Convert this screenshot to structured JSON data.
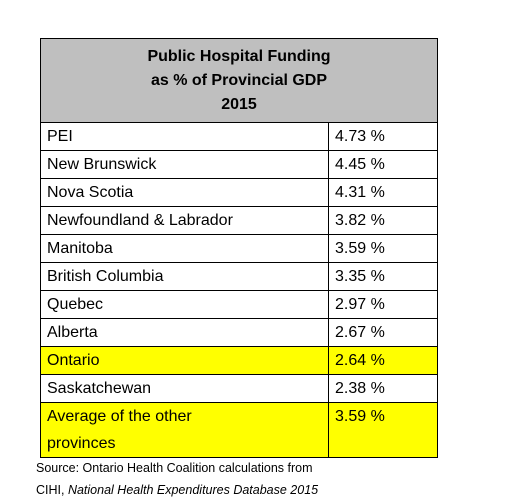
{
  "table": {
    "title": [
      "Public Hospital Funding",
      "as % of Provincial GDP",
      "2015"
    ],
    "header_color": "#bfbfbf",
    "highlight_color": "#ffff00",
    "highlighted_rows": [
      8,
      10
    ],
    "rows": [
      [
        "PEI",
        "4.73 %"
      ],
      [
        "New Brunswick",
        "4.45 %"
      ],
      [
        "Nova Scotia",
        "4.31 %"
      ],
      [
        "Newfoundland & Labrador",
        "3.82 %"
      ],
      [
        "Manitoba",
        "3.59 %"
      ],
      [
        "British Columbia",
        "3.35 %"
      ],
      [
        "Quebec",
        "2.97 %"
      ],
      [
        "Alberta",
        "2.67 %"
      ],
      [
        "Ontario",
        "2.64 %"
      ],
      [
        "Saskatchewan",
        "2.38 %"
      ],
      [
        "Average of the other provinces",
        "3.59 %"
      ]
    ]
  },
  "source": {
    "line1": "Source: Ontario Health Coalition calculations from",
    "prefix": "CIHI, ",
    "italic": "National Health Expenditures Database 2015"
  }
}
